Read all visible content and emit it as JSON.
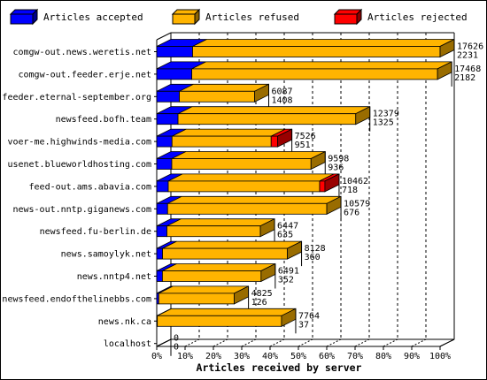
{
  "chart_data": {
    "type": "bar",
    "orientation": "horizontal",
    "stacked": true,
    "xlabel": "Articles received by server",
    "xticks": [
      "0%",
      "10%",
      "20%",
      "30%",
      "40%",
      "50%",
      "60%",
      "70%",
      "80%",
      "90%",
      "100%"
    ],
    "legend": {
      "placement": "top"
    },
    "categories": [
      "comgw-out.news.weretis.net",
      "comgw-out.feeder.erje.net",
      "feeder.eternal-september.org",
      "newsfeed.bofh.team",
      "voer-me.highwinds-media.com",
      "usenet.blueworldhosting.com",
      "feed-out.ams.abavia.com",
      "news-out.nntp.giganews.com",
      "newsfeed.fu-berlin.de",
      "news.samoylyk.net",
      "news.nntp4.net",
      "newsfeed.endofthelinebbs.com",
      "news.nk.ca",
      "localhost"
    ],
    "series": [
      {
        "name": "Articles accepted",
        "color": "#0000ff",
        "values": [
          2231,
          2182,
          1408,
          1325,
          951,
          936,
          718,
          676,
          635,
          360,
          352,
          126,
          37,
          0
        ]
      },
      {
        "name": "Articles refused",
        "color": "#ffb400",
        "values": [
          15395,
          15286,
          4679,
          11054,
          6167,
          8662,
          9416,
          9903,
          5812,
          7768,
          6139,
          4699,
          7727,
          0
        ]
      },
      {
        "name": "Articles rejected",
        "color": "#ff0000",
        "values": [
          0,
          0,
          0,
          0,
          408,
          0,
          328,
          0,
          0,
          0,
          0,
          0,
          0,
          0
        ]
      }
    ],
    "totals": [
      17626,
      17468,
      6087,
      12379,
      7526,
      9598,
      10462,
      10579,
      6447,
      8128,
      6491,
      4825,
      7764,
      0
    ],
    "accepted_labels": [
      2231,
      2182,
      1408,
      1325,
      951,
      936,
      718,
      676,
      635,
      360,
      352,
      126,
      37,
      0
    ],
    "xmax_total": 17626
  }
}
